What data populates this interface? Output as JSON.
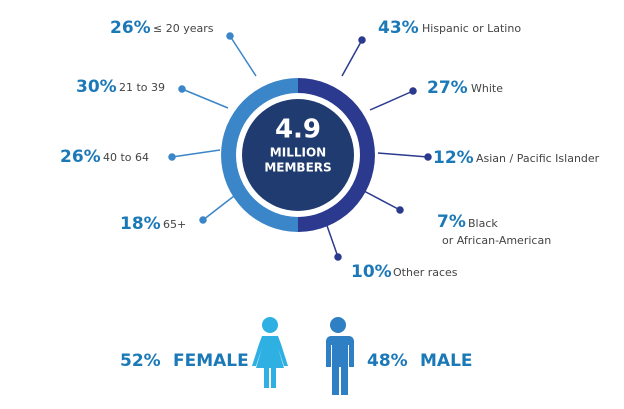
{
  "center": {
    "value": "4.9",
    "label_lines": [
      "MILLION",
      "MEMBERS"
    ]
  },
  "age_groups": [
    {
      "percent": "26%",
      "label": "≤ 20 years"
    },
    {
      "percent": "30%",
      "label": "21 to 39"
    },
    {
      "percent": "26%",
      "label": "40 to 64"
    },
    {
      "percent": "18%",
      "label": "65+"
    }
  ],
  "race_groups": [
    {
      "percent": "43%",
      "label_lines": [
        "Hispanic or Latino"
      ]
    },
    {
      "percent": "27%",
      "label_lines": [
        "White"
      ]
    },
    {
      "percent": "12%",
      "label_lines": [
        "Asian / Pacific Islander"
      ]
    },
    {
      "percent": "7%",
      "label_lines": [
        "Black",
        "or African-American"
      ]
    },
    {
      "percent": "10%",
      "label_lines": [
        "Other races"
      ]
    }
  ],
  "gender": [
    {
      "percent": "52%",
      "label": "FEMALE"
    },
    {
      "percent": "48%",
      "label": "MALE"
    }
  ]
}
